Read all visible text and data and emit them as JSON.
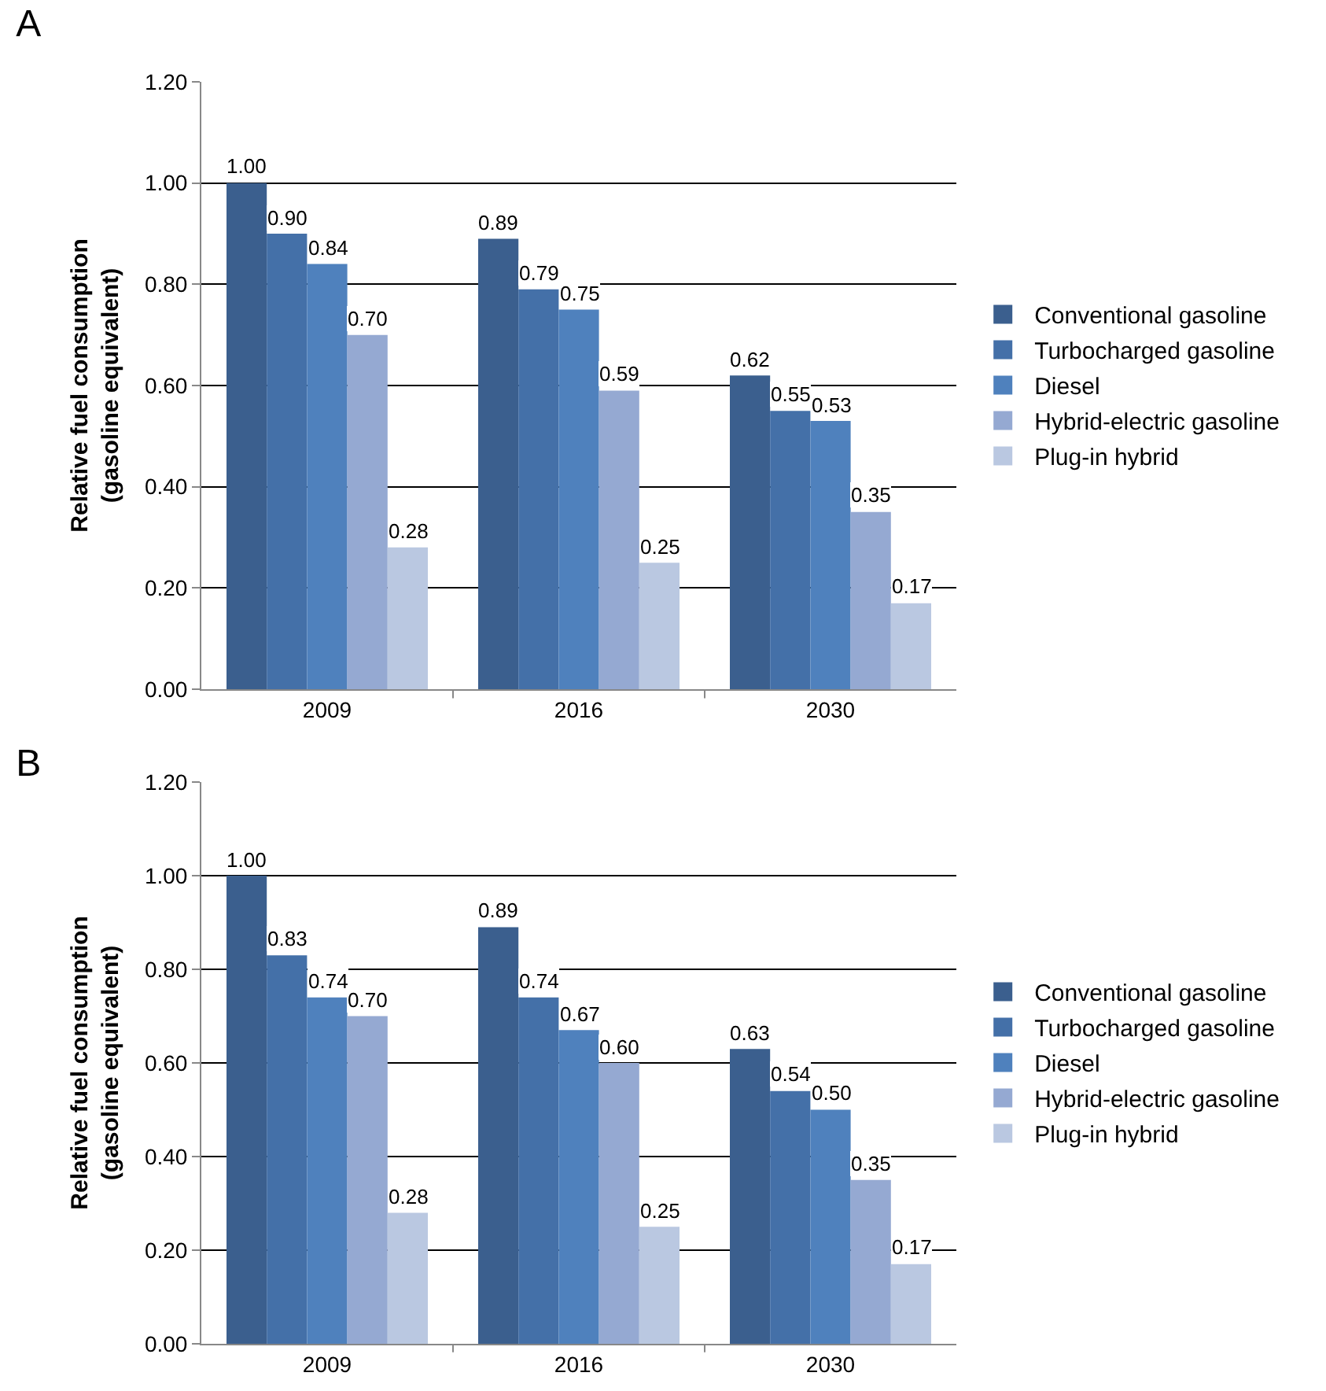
{
  "chart_data": [
    {
      "type": "bar",
      "title": "A",
      "ylabel": "Relative fuel consumption\n(gasoline equivalent)",
      "categories": [
        "2009",
        "2016",
        "2030"
      ],
      "series": [
        {
          "name": "Conventional gasoline",
          "color": "#3b5f8e",
          "values": [
            1.0,
            0.89,
            0.62
          ],
          "value_labels": [
            "1.00",
            "0.89",
            "0.62"
          ]
        },
        {
          "name": "Turbocharged gasoline",
          "color": "#4470a8",
          "values": [
            0.9,
            0.79,
            0.55
          ],
          "value_labels": [
            "0.90",
            "0.79",
            "0.55"
          ]
        },
        {
          "name": "Diesel",
          "color": "#4f81bd",
          "values": [
            0.84,
            0.75,
            0.53
          ],
          "value_labels": [
            "0.84",
            "0.75",
            "0.53"
          ]
        },
        {
          "name": "Hybrid-electric gasoline",
          "color": "#95a9d2",
          "values": [
            0.7,
            0.59,
            0.35
          ],
          "value_labels": [
            "0.70",
            "0.59",
            "0.35"
          ]
        },
        {
          "name": "Plug-in hybrid",
          "color": "#bac8e1",
          "values": [
            0.28,
            0.25,
            0.17
          ],
          "value_labels": [
            "0.28",
            "0.25",
            "0.17"
          ]
        }
      ],
      "ylim": [
        0,
        1.2
      ],
      "yticks": [
        {
          "value": 0,
          "label": "0.00"
        },
        {
          "value": 0.2,
          "label": "0.20"
        },
        {
          "value": 0.4,
          "label": "0.40"
        },
        {
          "value": 0.6,
          "label": "0.60"
        },
        {
          "value": 0.8,
          "label": "0.80"
        },
        {
          "value": 1.0,
          "label": "1.00"
        },
        {
          "value": 1.2,
          "label": "1.20"
        }
      ],
      "grid": "y",
      "legend": "right"
    },
    {
      "type": "bar",
      "title": "B",
      "ylabel": "Relative fuel consumption\n(gasoline equivalent)",
      "categories": [
        "2009",
        "2016",
        "2030"
      ],
      "series": [
        {
          "name": "Conventional gasoline",
          "color": "#3b5f8e",
          "values": [
            1.0,
            0.89,
            0.63
          ],
          "value_labels": [
            "1.00",
            "0.89",
            "0.63"
          ]
        },
        {
          "name": "Turbocharged gasoline",
          "color": "#4470a8",
          "values": [
            0.83,
            0.74,
            0.54
          ],
          "value_labels": [
            "0.83",
            "0.74",
            "0.54"
          ]
        },
        {
          "name": "Diesel",
          "color": "#4f81bd",
          "values": [
            0.74,
            0.67,
            0.5
          ],
          "value_labels": [
            "0.74",
            "0.67",
            "0.50"
          ]
        },
        {
          "name": "Hybrid-electric gasoline",
          "color": "#95a9d2",
          "values": [
            0.7,
            0.6,
            0.35
          ],
          "value_labels": [
            "0.70",
            "0.60",
            "0.35"
          ]
        },
        {
          "name": "Plug-in hybrid",
          "color": "#bac8e1",
          "values": [
            0.28,
            0.25,
            0.17
          ],
          "value_labels": [
            "0.28",
            "0.25",
            "0.17"
          ]
        }
      ],
      "ylim": [
        0,
        1.2
      ],
      "yticks": [
        {
          "value": 0,
          "label": "0.00"
        },
        {
          "value": 0.2,
          "label": "0.20"
        },
        {
          "value": 0.4,
          "label": "0.40"
        },
        {
          "value": 0.6,
          "label": "0.60"
        },
        {
          "value": 0.8,
          "label": "0.80"
        },
        {
          "value": 1.0,
          "label": "1.00"
        },
        {
          "value": 1.2,
          "label": "1.20"
        }
      ],
      "grid": "y",
      "legend": "right"
    }
  ]
}
